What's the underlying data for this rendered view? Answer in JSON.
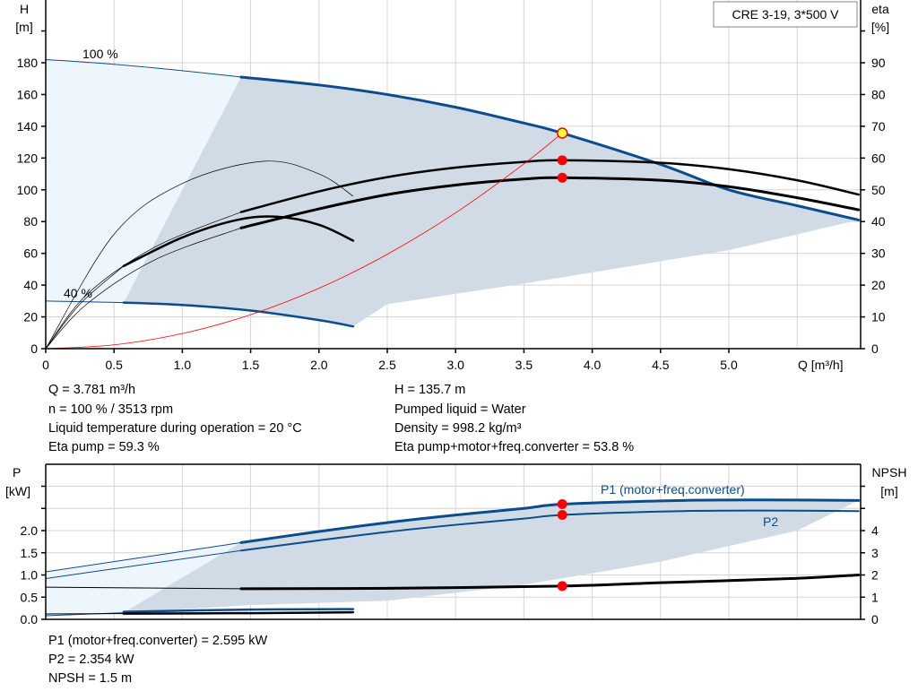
{
  "model_label": "CRE 3-19, 3*500 V",
  "colors": {
    "blue": "#0a4c8c",
    "shade": "#d0dbe6",
    "light": "#edf5fd",
    "red": "#ff0000",
    "op_point": "#ffff33"
  },
  "chart_data": [
    {
      "type": "line",
      "title": "",
      "xlabel": "Q [m³/h]",
      "ylabel_left": [
        "H",
        "[m]"
      ],
      "ylabel_right": [
        "eta",
        "[%]"
      ],
      "xlim": [
        0,
        6
      ],
      "ylim": [
        0,
        200
      ],
      "ylim_right": [
        0,
        100
      ],
      "grid": true,
      "x_ticks": [
        "0",
        "0.5",
        "1.0",
        "1.5",
        "2.0",
        "2.5",
        "3.0",
        "3.5",
        "4.0",
        "4.5",
        "5.0"
      ],
      "y_ticks": [
        "0",
        "20",
        "40",
        "60",
        "80",
        "100",
        "120",
        "140",
        "160",
        "180"
      ],
      "y_right_ticks": [
        "0",
        "10",
        "20",
        "30",
        "40",
        "50",
        "60",
        "70",
        "80",
        "90"
      ],
      "annotations": [
        "100 %",
        "40 %"
      ],
      "series": [
        {
          "id": "h100_thin",
          "axis": "left",
          "color": "#0a4c8c",
          "width": 1,
          "x": [
            0,
            0.5,
            1.0,
            1.43
          ],
          "y": [
            182,
            179,
            175,
            171
          ]
        },
        {
          "id": "h100",
          "axis": "left",
          "color": "#0a4c8c",
          "width": 3,
          "x": [
            1.43,
            2.0,
            2.5,
            3.0,
            3.5,
            3.78,
            4.5,
            5.0,
            5.5,
            5.95
          ],
          "y": [
            171,
            166,
            160,
            152,
            142,
            135.7,
            116,
            100,
            90,
            81
          ]
        },
        {
          "id": "h40_thin",
          "axis": "left",
          "color": "#0a4c8c",
          "width": 1,
          "x": [
            0,
            0.57
          ],
          "y": [
            30,
            29
          ]
        },
        {
          "id": "h40",
          "axis": "left",
          "color": "#0a4c8c",
          "width": 2.5,
          "x": [
            0.57,
            1.0,
            1.5,
            2.0,
            2.25
          ],
          "y": [
            29,
            27.5,
            24,
            18,
            14
          ]
        },
        {
          "id": "eta_pump",
          "axis": "right",
          "color": "#000000",
          "width": 2.5,
          "x": [
            1.43,
            2.0,
            2.5,
            3.0,
            3.5,
            3.78,
            4.5,
            5.0,
            5.5,
            5.95
          ],
          "y": [
            43,
            49.5,
            54,
            57,
            58.8,
            59.3,
            58.5,
            56.5,
            53,
            48.5
          ]
        },
        {
          "id": "eta_total",
          "axis": "right",
          "color": "#000000",
          "width": 3,
          "x": [
            1.43,
            2.0,
            2.5,
            3.0,
            3.5,
            3.78,
            4.5,
            5.0,
            5.5,
            5.95
          ],
          "y": [
            38,
            44,
            48.5,
            51.5,
            53.4,
            53.8,
            53,
            51,
            47.5,
            43.7
          ]
        },
        {
          "id": "eta_pump_40",
          "axis": "right",
          "color": "#000000",
          "width": 2.5,
          "x": [
            0.57,
            1.0,
            1.4,
            1.7,
            2.0,
            2.25
          ],
          "y": [
            26,
            35,
            40.5,
            41.5,
            39,
            34
          ]
        },
        {
          "id": "eta_thin_a",
          "axis": "right",
          "color": "#000000",
          "width": 0.7,
          "x": [
            0,
            0.5,
            1.0,
            1.6,
            2.0,
            2.25
          ],
          "y": [
            0,
            36,
            52,
            59,
            55,
            48
          ]
        },
        {
          "id": "eta_thin_b",
          "axis": "right",
          "color": "#000000",
          "width": 0.7,
          "x": [
            0,
            0.3,
            0.8,
            1.43
          ],
          "y": [
            0,
            17,
            32,
            43
          ]
        },
        {
          "id": "eta_thin_c",
          "axis": "right",
          "color": "#000000",
          "width": 0.7,
          "x": [
            0,
            0.3,
            0.8,
            1.43
          ],
          "y": [
            0,
            14,
            28,
            38
          ]
        },
        {
          "id": "eta_thin_d",
          "axis": "right",
          "color": "#000000",
          "width": 0.7,
          "x": [
            0,
            0.25,
            0.57
          ],
          "y": [
            0,
            14,
            26
          ]
        },
        {
          "id": "system",
          "axis": "left",
          "color": "#ff0000",
          "width": 0.8,
          "x": [
            0,
            0.5,
            1.0,
            1.5,
            2.0,
            2.5,
            3.0,
            3.5,
            3.78
          ],
          "y": [
            0,
            2.4,
            9.5,
            21.4,
            38,
            59.4,
            85.5,
            116.3,
            135.7
          ]
        }
      ],
      "shaded_region": {
        "x": [
          1.43,
          2.0,
          2.5,
          3.0,
          3.5,
          3.78,
          4.5,
          5.0,
          5.5,
          5.95,
          5.0,
          4.5,
          3.5,
          2.5,
          2.25,
          1.5,
          0.57,
          1.43
        ],
        "y": [
          171,
          166,
          160,
          152,
          142,
          135.7,
          116,
          100,
          90,
          81,
          62,
          55,
          41,
          28,
          14,
          24,
          29,
          171
        ]
      },
      "light_region": {
        "x": [
          0,
          1.43,
          0.57,
          0
        ],
        "y": [
          182,
          171,
          29,
          30
        ]
      },
      "points": [
        {
          "axis": "left",
          "x": 3.781,
          "y": 135.7,
          "color": "#ffff33"
        },
        {
          "axis": "right",
          "x": 3.781,
          "y": 59.3,
          "color": "#ff0000"
        },
        {
          "axis": "right",
          "x": 3.781,
          "y": 53.8,
          "color": "#ff0000"
        }
      ]
    },
    {
      "type": "line",
      "title": "",
      "ylabel_left": [
        "P",
        "[kW]"
      ],
      "ylabel_right": [
        "NPSH",
        "[m]"
      ],
      "xlim": [
        0,
        6
      ],
      "ylim": [
        0,
        3.5
      ],
      "ylim_right": [
        0,
        7
      ],
      "grid": true,
      "y_ticks": [
        "0.0",
        "0.5",
        "1.0",
        "1.5",
        "2.0"
      ],
      "y_right_ticks": [
        "0",
        "1",
        "2",
        "3",
        "4"
      ],
      "series": [
        {
          "id": "p1_thin",
          "name": "P1 (motor+freq.converter)",
          "axis": "left",
          "color": "#0a4c8c",
          "width": 1,
          "x": [
            0,
            1.43
          ],
          "y": [
            1.07,
            1.73
          ]
        },
        {
          "id": "p1",
          "name": "P1 (motor+freq.converter)",
          "axis": "left",
          "color": "#0a4c8c",
          "width": 3,
          "x": [
            1.43,
            2.0,
            2.5,
            3.0,
            3.5,
            3.78,
            4.5,
            5.0,
            5.5,
            5.95
          ],
          "y": [
            1.73,
            1.98,
            2.18,
            2.35,
            2.5,
            2.595,
            2.67,
            2.69,
            2.69,
            2.68
          ]
        },
        {
          "id": "p2_thin",
          "name": "P2",
          "axis": "left",
          "color": "#0a4c8c",
          "width": 1,
          "x": [
            0,
            1.43
          ],
          "y": [
            0.92,
            1.55
          ]
        },
        {
          "id": "p2",
          "name": "P2",
          "axis": "left",
          "color": "#0a4c8c",
          "width": 2,
          "x": [
            1.43,
            2.0,
            2.5,
            3.0,
            3.5,
            3.78,
            4.5,
            5.0,
            5.5,
            5.95
          ],
          "y": [
            1.55,
            1.78,
            1.97,
            2.13,
            2.27,
            2.354,
            2.43,
            2.45,
            2.45,
            2.44
          ]
        },
        {
          "id": "npsh_thin",
          "axis": "right",
          "color": "#000000",
          "width": 1,
          "x": [
            0,
            1.43
          ],
          "y": [
            1.45,
            1.38
          ]
        },
        {
          "id": "npsh",
          "axis": "right",
          "color": "#000000",
          "width": 3,
          "x": [
            1.43,
            2.5,
            3.78,
            4.5,
            5.5,
            5.95
          ],
          "y": [
            1.38,
            1.4,
            1.5,
            1.65,
            1.85,
            2.0
          ]
        },
        {
          "id": "p1_40_thin",
          "axis": "left",
          "color": "#0a4c8c",
          "width": 1,
          "x": [
            0,
            0.57
          ],
          "y": [
            0.08,
            0.15
          ]
        },
        {
          "id": "p1_40",
          "axis": "left",
          "color": "#0a4c8c",
          "width": 2.5,
          "x": [
            0.57,
            1.5,
            2.25
          ],
          "y": [
            0.17,
            0.22,
            0.23
          ]
        },
        {
          "id": "npsh_40_thin",
          "axis": "left",
          "color": "#000000",
          "width": 1,
          "x": [
            0,
            0.57
          ],
          "y": [
            0.12,
            0.13
          ]
        },
        {
          "id": "npsh_40",
          "axis": "left",
          "color": "#000000",
          "width": 2.5,
          "x": [
            0.57,
            1.5,
            2.25
          ],
          "y": [
            0.13,
            0.14,
            0.16
          ]
        }
      ],
      "series_labels": [
        "P1 (motor+freq.converter)",
        "P2"
      ],
      "shaded_region": {
        "x": [
          1.43,
          2.0,
          2.5,
          3.0,
          3.5,
          3.78,
          4.5,
          5.0,
          5.5,
          5.95,
          5.5,
          4.5,
          3.5,
          2.5,
          1.5,
          0.57,
          1.43
        ],
        "y": [
          1.73,
          1.98,
          2.18,
          2.35,
          2.5,
          2.595,
          2.67,
          2.69,
          2.69,
          2.68,
          2.0,
          1.3,
          0.78,
          0.42,
          0.32,
          0.15,
          1.73
        ]
      },
      "light_region": {
        "x": [
          0,
          1.43,
          1.2,
          0.57,
          0
        ],
        "y": [
          1.07,
          1.73,
          1.1,
          0.15,
          0.08
        ]
      },
      "points": [
        {
          "axis": "left",
          "x": 3.781,
          "y": 2.595,
          "color": "#ff0000"
        },
        {
          "axis": "left",
          "x": 3.781,
          "y": 2.354,
          "color": "#ff0000"
        },
        {
          "axis": "right",
          "x": 3.781,
          "y": 1.5,
          "color": "#ff0000"
        }
      ]
    }
  ],
  "info_top_left": [
    "Q = 3.781 m³/h",
    "n = 100 % / 3513 rpm",
    "Liquid temperature during operation = 20 °C",
    "Eta pump = 59.3 %"
  ],
  "info_top_right": [
    "H = 135.7 m",
    "Pumped liquid = Water",
    "Density = 998.2 kg/m³",
    "Eta pump+motor+freq.converter = 53.8 %"
  ],
  "info_bottom": [
    "P1 (motor+freq.converter) = 2.595 kW",
    "P2 = 2.354 kW",
    "NPSH = 1.5 m"
  ]
}
